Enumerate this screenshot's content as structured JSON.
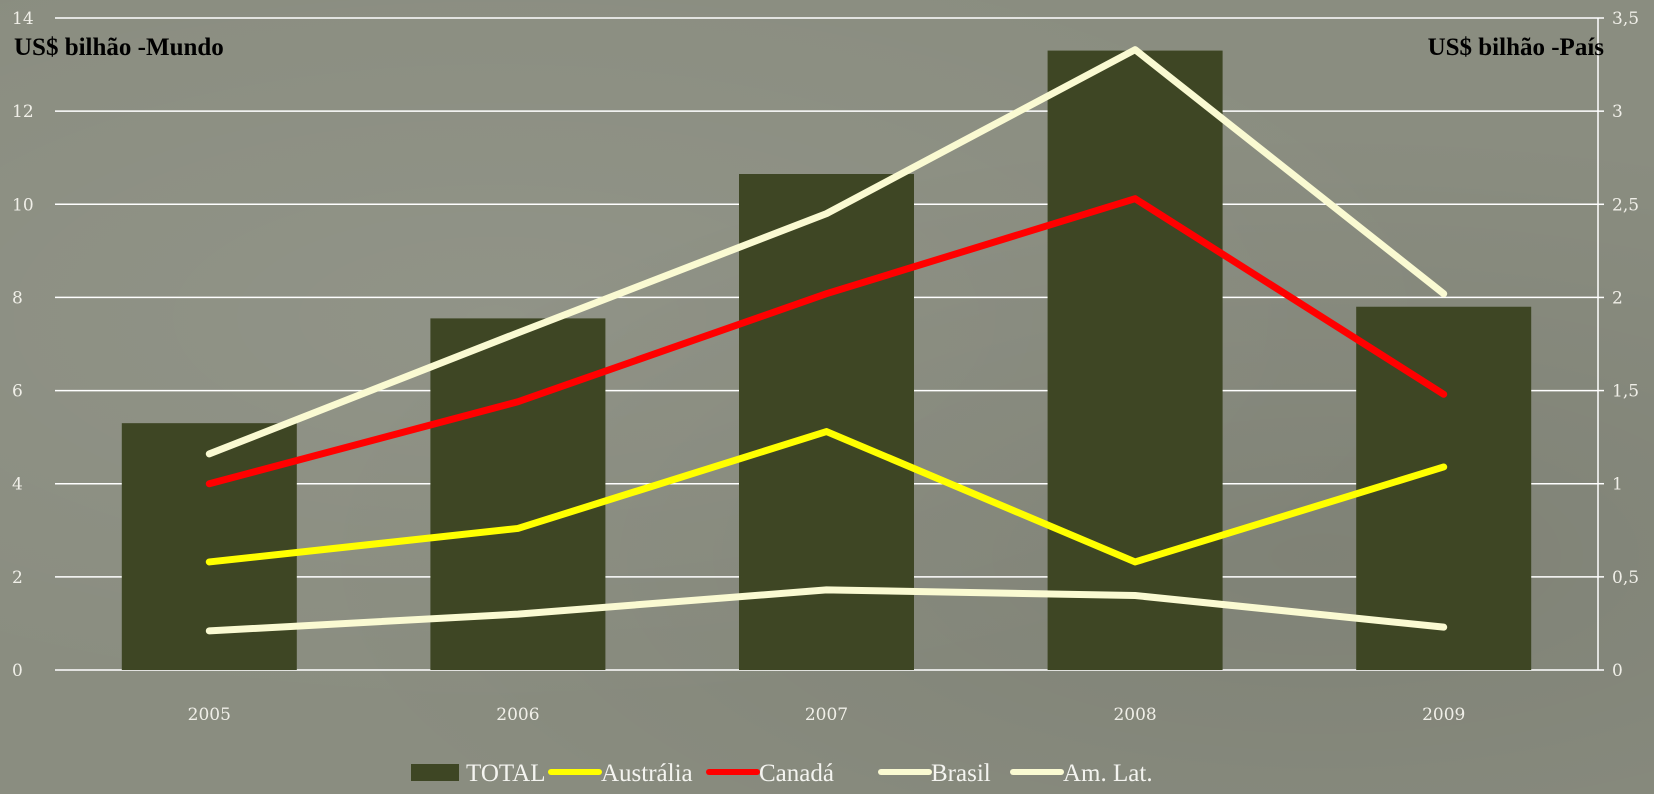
{
  "chart_data": {
    "type": "bar",
    "categories": [
      "2005",
      "2006",
      "2007",
      "2008",
      "2009"
    ],
    "left_axis": {
      "label": "US$ bilhão -Mundo",
      "ylim": [
        0,
        14
      ],
      "ticks": [
        "0",
        "2",
        "4",
        "6",
        "8",
        "10",
        "12",
        "14"
      ],
      "tick_values": [
        0,
        2,
        4,
        6,
        8,
        10,
        12,
        14
      ]
    },
    "right_axis": {
      "label": "US$ bilhão -País",
      "ylim": [
        0,
        3.5
      ],
      "ticks": [
        "0",
        "0,5",
        "1",
        "1,5",
        "2",
        "2,5",
        "3",
        "3,5"
      ],
      "tick_values": [
        0,
        0.5,
        1,
        1.5,
        2,
        2.5,
        3,
        3.5
      ]
    },
    "bars": {
      "name": "TOTAL",
      "values": [
        5.3,
        7.55,
        10.65,
        13.3,
        7.8
      ],
      "color": "#3e4624",
      "axis": "left"
    },
    "series": [
      {
        "name": "Austrália",
        "type": "line",
        "axis": "right",
        "color": "#ffff00",
        "values": [
          0.58,
          0.76,
          1.28,
          0.58,
          1.09
        ]
      },
      {
        "name": "Canadá",
        "type": "line",
        "axis": "right",
        "color": "#ff0000",
        "values": [
          1.0,
          1.44,
          2.02,
          2.53,
          1.48
        ]
      },
      {
        "name": "Brasil",
        "type": "line",
        "axis": "right",
        "color": "#fafad2",
        "values": [
          0.21,
          0.3,
          0.43,
          0.4,
          0.23
        ]
      },
      {
        "name": "Am. Lat.",
        "type": "line",
        "axis": "right",
        "color": "#fafad2",
        "values": [
          1.16,
          1.81,
          2.45,
          3.33,
          2.02
        ]
      }
    ],
    "grid": true,
    "legend_position": "bottom"
  }
}
